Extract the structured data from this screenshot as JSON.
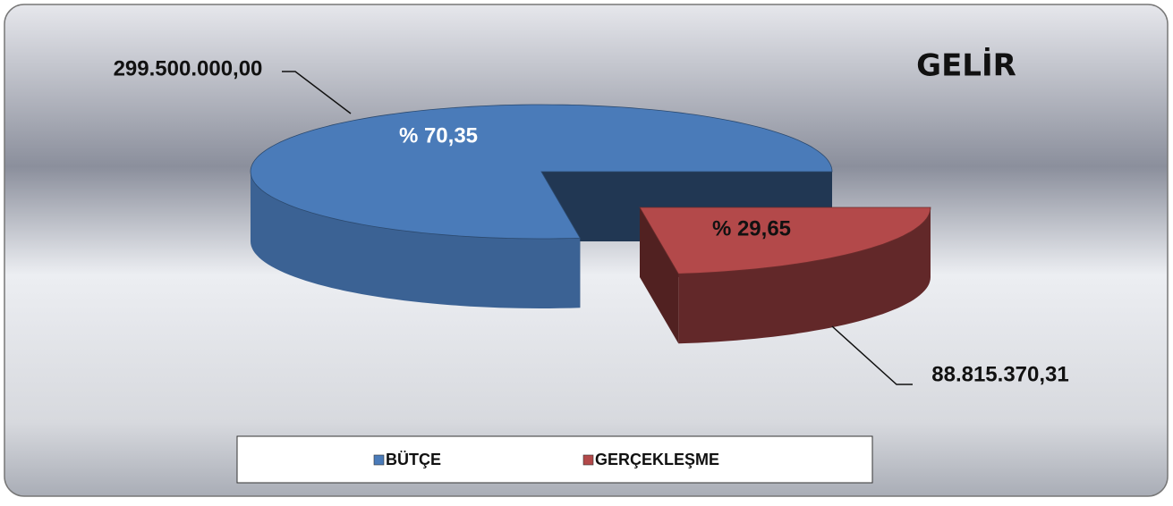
{
  "chart_data": {
    "type": "pie",
    "title": "GELİR",
    "categories": [
      "BÜTÇE",
      "GERÇEKLEŞME"
    ],
    "values": [
      299500000,
      88815370.31
    ],
    "value_labels": [
      "299.500.000,00",
      "88.815.370,31"
    ],
    "percent_labels": [
      "% 70,35",
      "% 29,65"
    ],
    "colors": [
      "#4a7bb9",
      "#b3494a"
    ],
    "legend": "bottom"
  }
}
